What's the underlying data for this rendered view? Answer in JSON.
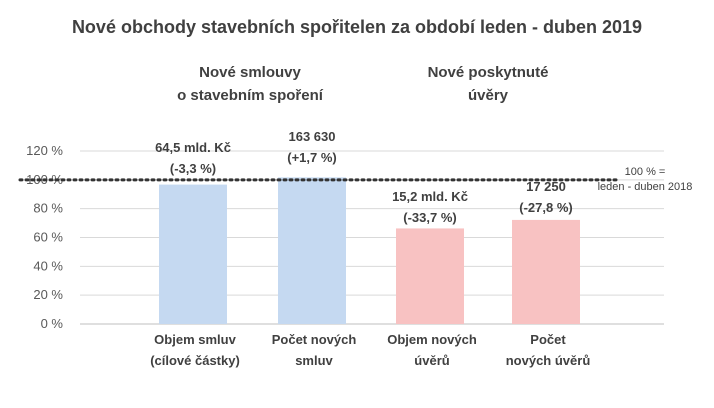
{
  "chart_data": {
    "type": "bar",
    "title": "Nové obchody stavebních spořitelen za období leden - duben 2019",
    "groups": [
      {
        "label_lines": [
          "Nové smlouvy",
          "o stavebním spoření"
        ]
      },
      {
        "label_lines": [
          "Nové poskytnuté",
          "úvěry"
        ]
      }
    ],
    "categories": [
      {
        "lines": [
          "Objem smluv",
          "(cílové částky)"
        ]
      },
      {
        "lines": [
          "Počet  nových",
          "smluv"
        ]
      },
      {
        "lines": [
          "Objem nových",
          "úvěrů"
        ]
      },
      {
        "lines": [
          "Počet",
          "nových úvěrů"
        ]
      }
    ],
    "values": [
      96.7,
      101.7,
      66.3,
      72.2
    ],
    "data_labels": [
      {
        "lines": [
          "64,5 mld. Kč",
          "(-3,3 %)"
        ]
      },
      {
        "lines": [
          "163 630",
          "(+1,7 %)"
        ]
      },
      {
        "lines": [
          "15,2 mld. Kč",
          "(-33,7 %)"
        ]
      },
      {
        "lines": [
          "17 250",
          "(-27,8 %)"
        ]
      }
    ],
    "colors": [
      "#c5d9f1",
      "#c5d9f1",
      "#f8c2c2",
      "#f8c2c2"
    ],
    "yticks": [
      "0 %",
      "20 %",
      "40 %",
      "60 %",
      "80 %",
      "100 %",
      "120 %"
    ],
    "ylim": [
      0,
      120
    ],
    "grid": true,
    "reference_line": {
      "value": 100,
      "label_lines": [
        "100 % =",
        "leden - duben 2018"
      ]
    }
  }
}
